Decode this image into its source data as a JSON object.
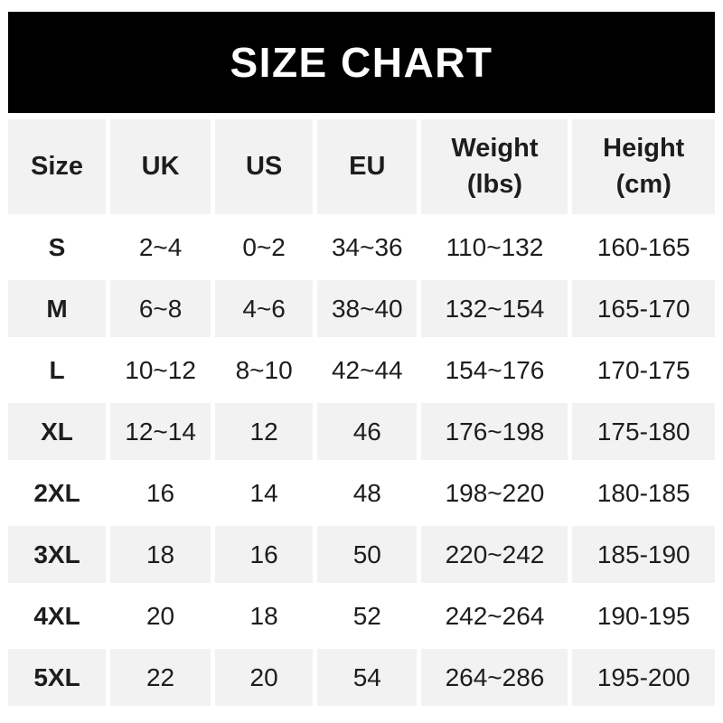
{
  "title": "SIZE CHART",
  "colors": {
    "banner_bg": "#000000",
    "banner_text": "#ffffff",
    "row_alt_bg": "#f2f2f2",
    "row_bg": "#ffffff",
    "text": "#1d1d1f"
  },
  "chart_data": {
    "type": "table",
    "title": "SIZE CHART",
    "legend_position": "none",
    "grid": "alternating-row-shading",
    "headers": [
      "Size",
      "UK",
      "US",
      "EU",
      "Weight\n(lbs)",
      "Height\n(cm)"
    ],
    "rows": [
      [
        "S",
        "2~4",
        "0~2",
        "34~36",
        "110~132",
        "160-165"
      ],
      [
        "M",
        "6~8",
        "4~6",
        "38~40",
        "132~154",
        "165-170"
      ],
      [
        "L",
        "10~12",
        "8~10",
        "42~44",
        "154~176",
        "170-175"
      ],
      [
        "XL",
        "12~14",
        "12",
        "46",
        "176~198",
        "175-180"
      ],
      [
        "2XL",
        "16",
        "14",
        "48",
        "198~220",
        "180-185"
      ],
      [
        "3XL",
        "18",
        "16",
        "50",
        "220~242",
        "185-190"
      ],
      [
        "4XL",
        "20",
        "18",
        "52",
        "242~264",
        "190-195"
      ],
      [
        "5XL",
        "22",
        "20",
        "54",
        "264~286",
        "195-200"
      ]
    ]
  }
}
